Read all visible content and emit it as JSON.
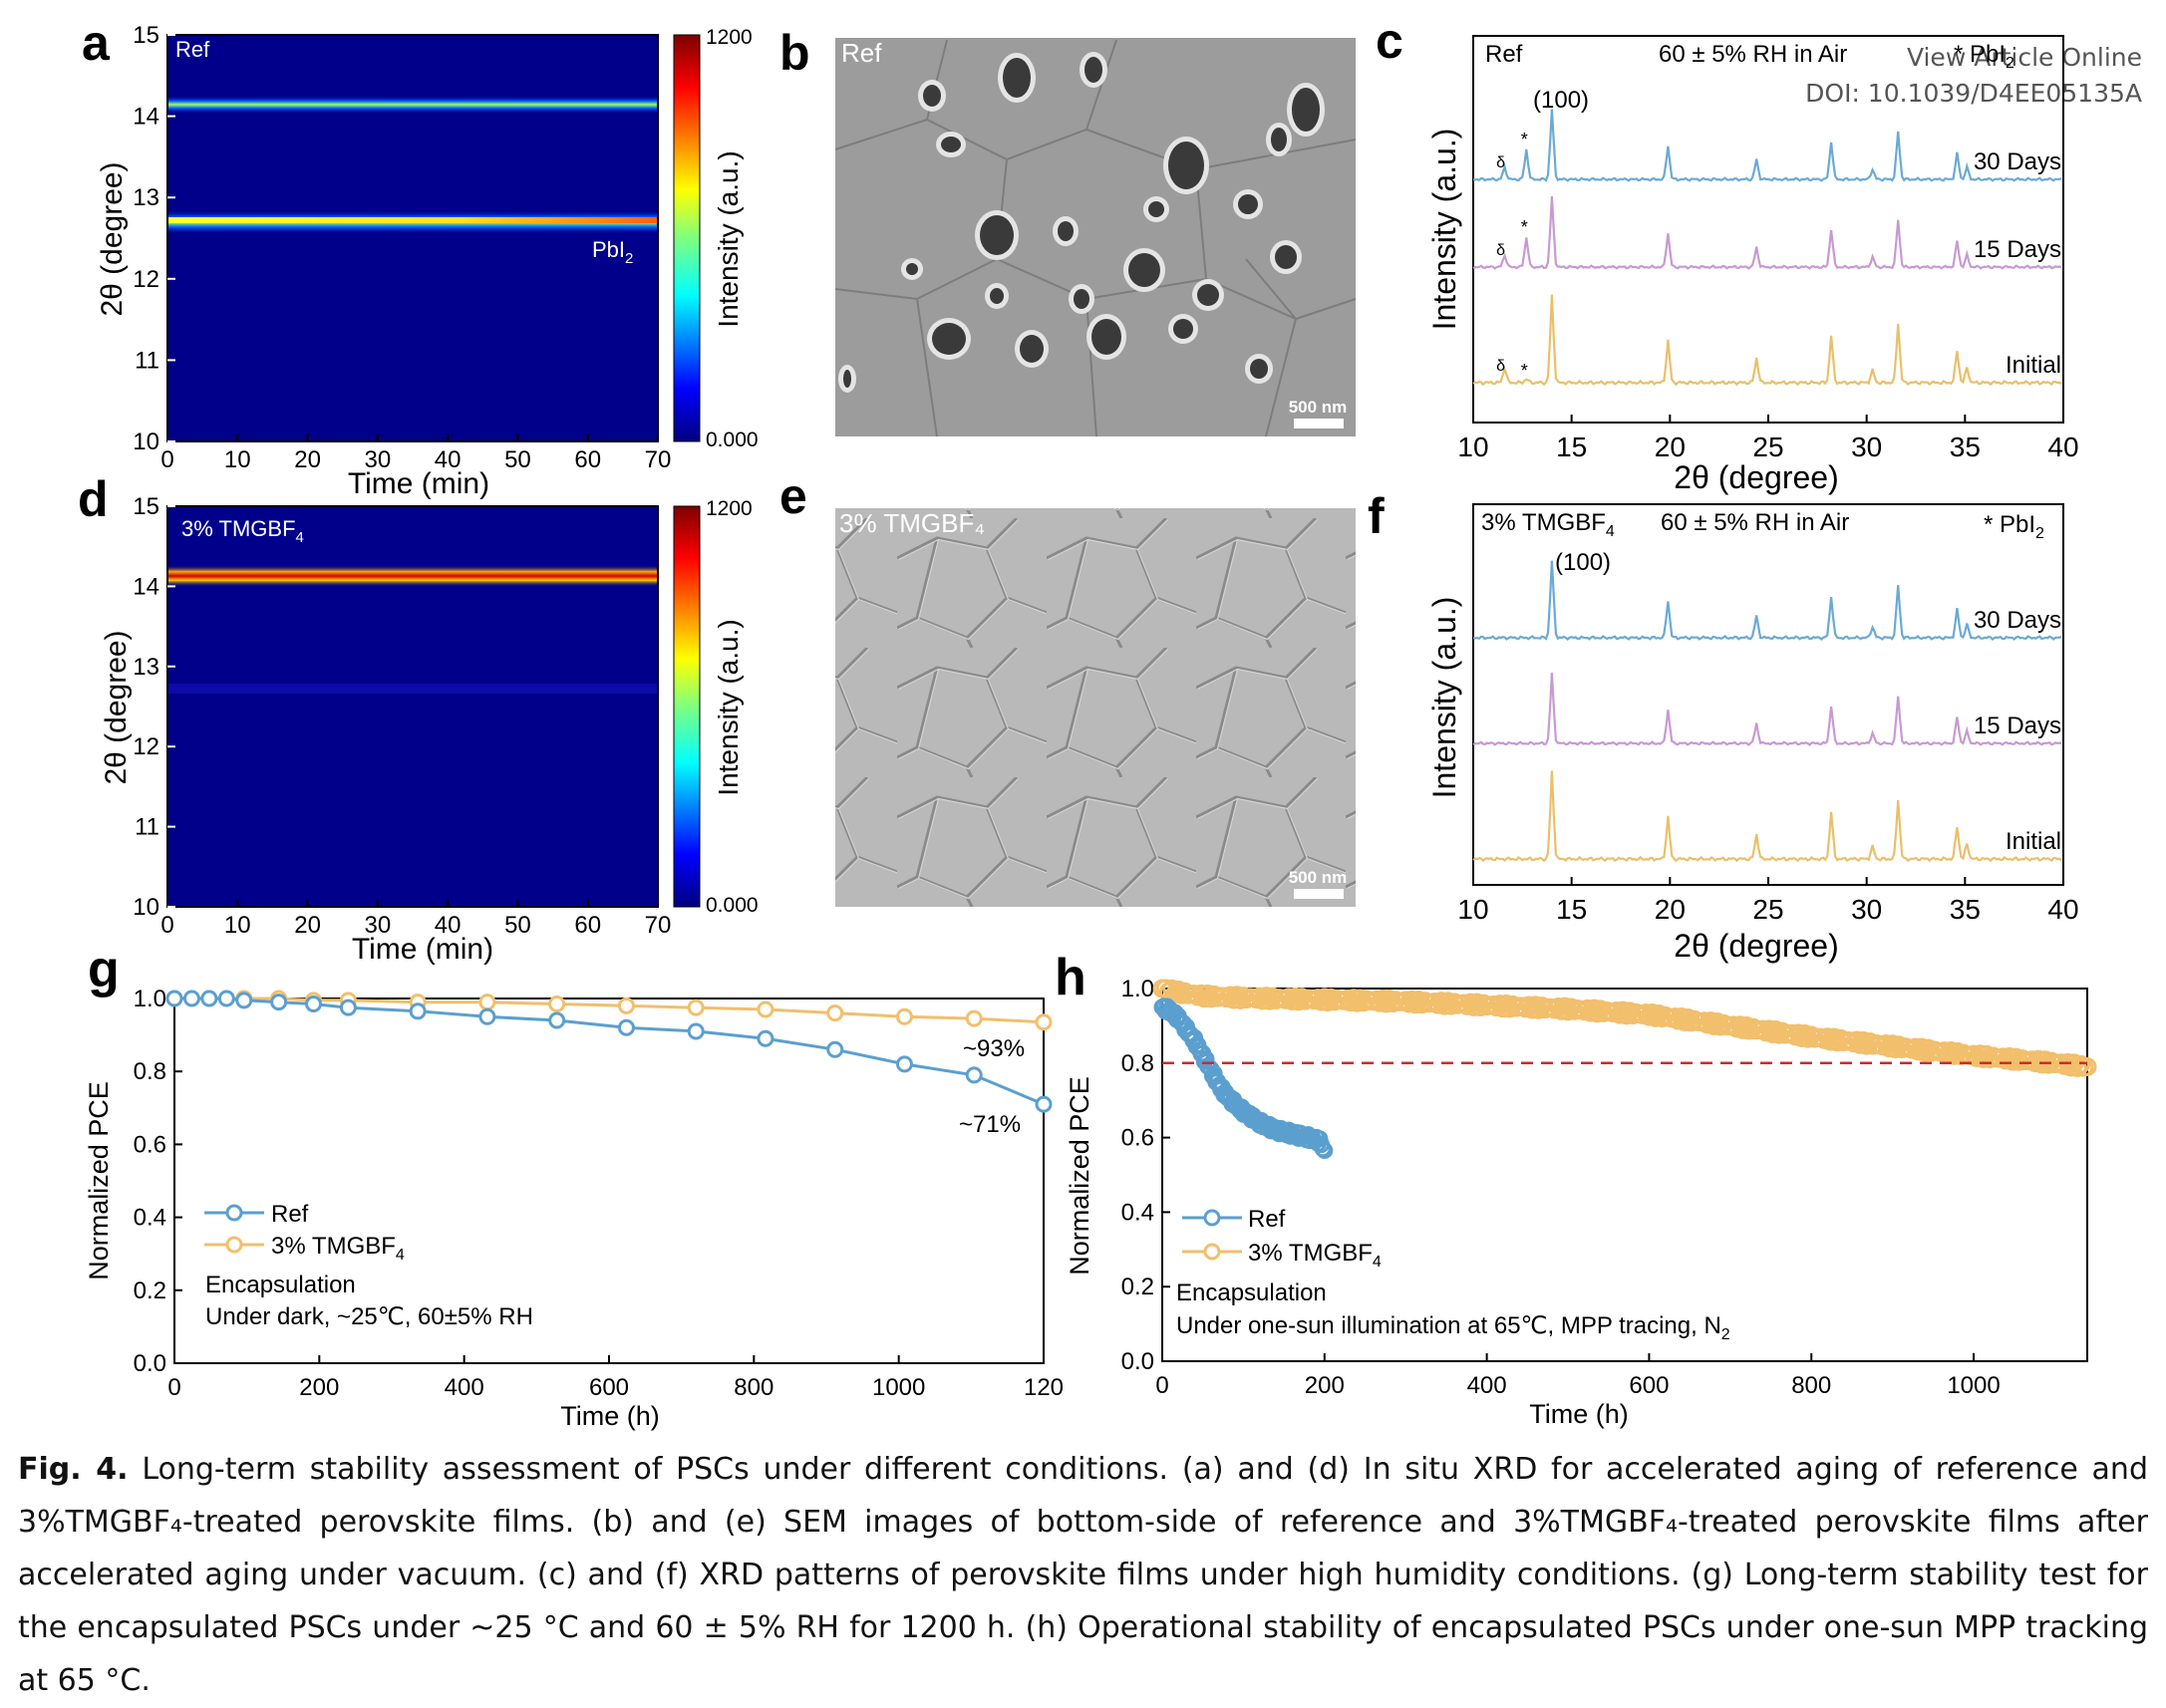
{
  "watermark": {
    "line1": "View Article Online",
    "line2": "DOI: 10.1039/D4EE05135A"
  },
  "panels": {
    "a": {
      "letter": "a",
      "tag": "Ref",
      "peak_label": "PbI",
      "peak_sub": "2",
      "xlabel": "Time (min)",
      "ylabel": "2θ (degree)",
      "xticks": [
        "0",
        "10",
        "20",
        "30",
        "40",
        "50",
        "60",
        "70"
      ],
      "yticks": [
        "10",
        "11",
        "12",
        "13",
        "14",
        "15"
      ],
      "cbar_label": "Intensity (a.u.)",
      "cbar_max": "1200",
      "cbar_min": "0.000"
    },
    "b": {
      "letter": "b",
      "tag": "Ref",
      "scale": "500 nm"
    },
    "c": {
      "letter": "c",
      "tag": "Ref",
      "condition": "60 ± 5% RH in Air",
      "legend": "* PbI",
      "legend_sub": "2",
      "peak_100": "(100)",
      "delta": "δ",
      "star": "*",
      "traces": [
        "30 Days",
        "15 Days",
        "Initial"
      ],
      "xlabel": "2θ (degree)",
      "ylabel": "Intensity (a.u.)",
      "xticks": [
        "10",
        "15",
        "20",
        "25",
        "30",
        "35",
        "40"
      ]
    },
    "d": {
      "letter": "d",
      "tag": "3% TMGBF",
      "tag_sub": "4",
      "xlabel": "Time (min)",
      "ylabel": "2θ (degree)",
      "xticks": [
        "0",
        "10",
        "20",
        "30",
        "40",
        "50",
        "60",
        "70"
      ],
      "yticks": [
        "10",
        "11",
        "12",
        "13",
        "14",
        "15"
      ],
      "cbar_label": "Intensity (a.u.)",
      "cbar_max": "1200",
      "cbar_min": "0.000"
    },
    "e": {
      "letter": "e",
      "tag": "3% TMGBF₄",
      "scale": "500 nm"
    },
    "f": {
      "letter": "f",
      "tag": "3% TMGBF",
      "tag_sub": "4",
      "condition": "60 ± 5% RH in Air",
      "legend": "* PbI",
      "legend_sub": "2",
      "peak_100": "(100)",
      "traces": [
        "30 Days",
        "15 Days",
        "Initial"
      ],
      "xlabel": "2θ (degree)",
      "ylabel": "Intensity (a.u.)",
      "xticks": [
        "10",
        "15",
        "20",
        "25",
        "30",
        "35",
        "40"
      ]
    },
    "g": {
      "letter": "g",
      "xlabel": "Time (h)",
      "ylabel": "Normalized PCE",
      "xticks": [
        "0",
        "200",
        "400",
        "600",
        "800",
        "1000",
        "120"
      ],
      "yticks": [
        "0.0",
        "0.2",
        "0.4",
        "0.6",
        "0.8",
        "1.0"
      ],
      "legend": [
        "Ref",
        "3% TMGBF"
      ],
      "legend_sub": "4",
      "note1": "Encapsulation",
      "note2": "Under dark, ~25℃, 60±5% RH",
      "ann_ref": "~71%",
      "ann_tmg": "~93%"
    },
    "h": {
      "letter": "h",
      "xlabel": "Time (h)",
      "ylabel": "Normalized PCE",
      "xticks": [
        "0",
        "200",
        "400",
        "600",
        "800",
        "1000"
      ],
      "yticks": [
        "0.0",
        "0.2",
        "0.4",
        "0.6",
        "0.8",
        "1.0"
      ],
      "legend": [
        "Ref",
        "3% TMGBF"
      ],
      "legend_sub": "4",
      "note1": "Encapsulation",
      "note2": "Under one-sun illumination at 65℃, MPP tracing, N",
      "note2_sub": "2"
    }
  },
  "chart_data": [
    {
      "panel": "a",
      "type": "heatmap",
      "x_range": [
        0,
        70
      ],
      "y_range": [
        10,
        15
      ],
      "color_range": [
        0,
        1200
      ],
      "bands": [
        {
          "y": 14.1,
          "relative_intensity": 0.55,
          "trend": "constant"
        },
        {
          "y": 12.7,
          "relative_intensity": 0.65,
          "trend": "increasing",
          "label": "PbI2"
        }
      ]
    },
    {
      "panel": "d",
      "type": "heatmap",
      "x_range": [
        0,
        70
      ],
      "y_range": [
        10,
        15
      ],
      "color_range": [
        0,
        1200
      ],
      "bands": [
        {
          "y": 14.1,
          "relative_intensity": 0.85,
          "trend": "constant"
        },
        {
          "y": 12.7,
          "relative_intensity": 0.05,
          "trend": "constant"
        }
      ]
    },
    {
      "panel": "c",
      "type": "line",
      "xlim": [
        10,
        40
      ],
      "peaks_2theta": [
        11.6,
        12.7,
        14.0,
        19.9,
        24.4,
        28.2,
        30.3,
        31.6,
        34.6,
        35.1
      ],
      "series": [
        {
          "name": "30 Days",
          "color": "#6aaad4",
          "pbi2_peak": true,
          "delta_peak": true
        },
        {
          "name": "15 Days",
          "color": "#c79ad2",
          "pbi2_peak": true,
          "delta_peak": true
        },
        {
          "name": "Initial",
          "color": "#e9c06a",
          "pbi2_peak": false,
          "delta_peak": true
        }
      ]
    },
    {
      "panel": "f",
      "type": "line",
      "xlim": [
        10,
        40
      ],
      "peaks_2theta": [
        14.0,
        19.9,
        24.4,
        28.2,
        30.3,
        31.6,
        34.6,
        35.1
      ],
      "series": [
        {
          "name": "30 Days",
          "color": "#6aaad4"
        },
        {
          "name": "15 Days",
          "color": "#c79ad2"
        },
        {
          "name": "Initial",
          "color": "#e9c06a"
        }
      ]
    },
    {
      "panel": "g",
      "type": "line",
      "xlim": [
        0,
        1200
      ],
      "ylim": [
        0,
        1.0
      ],
      "series": [
        {
          "name": "Ref",
          "color": "#5b9fcf",
          "x": [
            0,
            24,
            48,
            72,
            96,
            144,
            192,
            240,
            336,
            432,
            528,
            624,
            720,
            816,
            912,
            1008,
            1104,
            1200
          ],
          "y": [
            1.0,
            1.0,
            1.0,
            1.0,
            0.995,
            0.99,
            0.985,
            0.975,
            0.965,
            0.95,
            0.94,
            0.92,
            0.91,
            0.89,
            0.86,
            0.82,
            0.79,
            0.71
          ]
        },
        {
          "name": "3% TMGBF4",
          "color": "#f2bf6c",
          "x": [
            0,
            48,
            96,
            144,
            192,
            240,
            336,
            432,
            528,
            624,
            720,
            816,
            912,
            1008,
            1104,
            1200
          ],
          "y": [
            1.0,
            1.0,
            1.0,
            1.0,
            0.995,
            0.995,
            0.99,
            0.99,
            0.985,
            0.98,
            0.975,
            0.97,
            0.96,
            0.95,
            0.945,
            0.935
          ]
        }
      ]
    },
    {
      "panel": "h",
      "type": "scatter",
      "xlim": [
        0,
        1140
      ],
      "ylim": [
        0,
        1.0
      ],
      "threshold": 0.8,
      "series": [
        {
          "name": "Ref",
          "color": "#5b9fcf",
          "x": [
            0,
            10,
            20,
            30,
            40,
            50,
            60,
            70,
            80,
            100,
            120,
            140,
            160,
            180,
            195,
            200
          ],
          "y": [
            0.95,
            0.94,
            0.92,
            0.89,
            0.86,
            0.82,
            0.78,
            0.74,
            0.71,
            0.67,
            0.64,
            0.62,
            0.61,
            0.6,
            0.59,
            0.56
          ]
        },
        {
          "name": "3% TMGBF4",
          "color": "#f2bf6c",
          "x": [
            0,
            20,
            50,
            100,
            200,
            300,
            400,
            500,
            600,
            700,
            800,
            900,
            1000,
            1100,
            1140
          ],
          "y": [
            1.0,
            0.99,
            0.98,
            0.975,
            0.97,
            0.965,
            0.955,
            0.945,
            0.93,
            0.9,
            0.87,
            0.845,
            0.82,
            0.8,
            0.79
          ]
        }
      ]
    }
  ],
  "caption": {
    "label": "Fig. 4.",
    "text": " Long-term stability assessment of PSCs under different conditions.  (a) and (d) In situ XRD for accelerated aging of reference and 3%TMGBF₄-treated perovskite films. (b) and (e) SEM images of bottom-side of reference and 3%TMGBF₄-treated perovskite films after accelerated aging under vacuum. (c) and (f) XRD patterns of perovskite films under high humidity conditions. (g) Long-term stability test for the encapsulated PSCs under ~25 °C and 60 ± 5% RH for 1200 h. (h) Operational stability of encapsulated PSCs under one-sun MPP tracking at 65 °C."
  }
}
